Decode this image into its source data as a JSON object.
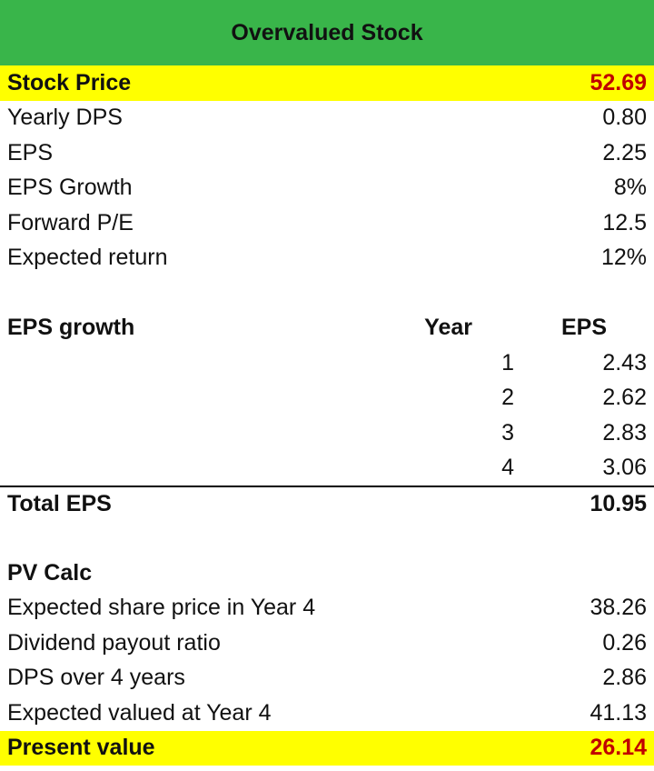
{
  "title": "Overvalued Stock",
  "inputs": {
    "stock_price": {
      "label": "Stock Price",
      "value": "52.69"
    },
    "items": [
      {
        "label": "Yearly DPS",
        "value": "0.80"
      },
      {
        "label": "EPS",
        "value": "2.25"
      },
      {
        "label": "EPS Growth",
        "value": "8%"
      },
      {
        "label": "Forward P/E",
        "value": "12.5"
      },
      {
        "label": "Expected return",
        "value": "12%"
      }
    ]
  },
  "eps_growth": {
    "label": "EPS growth",
    "year_header": "Year",
    "eps_header": "EPS",
    "rows": [
      {
        "year": "1",
        "eps": "2.43"
      },
      {
        "year": "2",
        "eps": "2.62"
      },
      {
        "year": "3",
        "eps": "2.83"
      },
      {
        "year": "4",
        "eps": "3.06"
      }
    ],
    "total_label": "Total EPS",
    "total_value": "10.95"
  },
  "pv_calc": {
    "label": "PV Calc",
    "items": [
      {
        "label": "Expected share price in Year 4",
        "value": "38.26"
      },
      {
        "label": "Dividend payout ratio",
        "value": "0.26"
      },
      {
        "label": "DPS over 4 years",
        "value": "2.86"
      },
      {
        "label": "Expected valued at Year 4",
        "value": "41.13"
      }
    ],
    "present_value": {
      "label": "Present value",
      "value": "26.14"
    }
  },
  "colors": {
    "title_bg": "#39b54a",
    "highlight_bg": "#ffff00",
    "highlight_value": "#c00000"
  }
}
